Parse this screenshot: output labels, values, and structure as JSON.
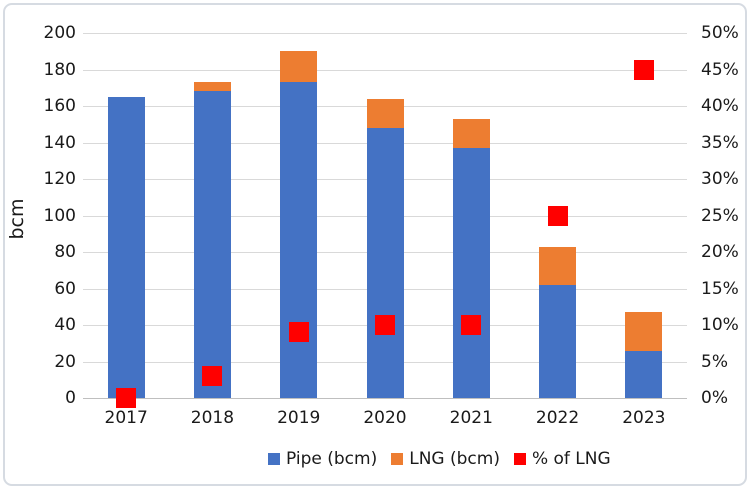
{
  "figure": {
    "background_color": "#ffffff",
    "border_color": "#d6dbe2"
  },
  "chart_data": {
    "type": "bar",
    "subtype": "stacked-bars-with-scatter-markers",
    "title": "",
    "categories": [
      "2017",
      "2018",
      "2019",
      "2020",
      "2021",
      "2022",
      "2023"
    ],
    "series": [
      {
        "name": "Pipe (bcm)",
        "type": "bar",
        "axis": "left",
        "color": "#4472C4",
        "values": [
          165,
          168,
          173,
          148,
          137,
          62,
          26
        ]
      },
      {
        "name": "LNG (bcm)",
        "type": "bar",
        "axis": "left",
        "color": "#ED7D31",
        "values": [
          0,
          5,
          17,
          16,
          16,
          21,
          21
        ]
      },
      {
        "name": "% of LNG",
        "type": "scatter-square",
        "axis": "right",
        "color": "#FF0000",
        "values": [
          0,
          3,
          9,
          10,
          10,
          25,
          45
        ]
      }
    ],
    "left_axis": {
      "label": "bcm",
      "min": 0,
      "max": 200,
      "step": 20,
      "ticks": [
        "200",
        "180",
        "160",
        "140",
        "120",
        "100",
        "80",
        "60",
        "40",
        "20",
        "0"
      ]
    },
    "right_axis": {
      "label": "",
      "min": 0,
      "max": 50,
      "step": 5,
      "ticks": [
        "50%",
        "45%",
        "40%",
        "35%",
        "30%",
        "25%",
        "20%",
        "15%",
        "10%",
        "5%",
        "0%"
      ]
    },
    "grid": true,
    "gridline_color": "#d9d9d9",
    "axis_line_color": "#bfbfbf",
    "legend_position": "bottom"
  }
}
